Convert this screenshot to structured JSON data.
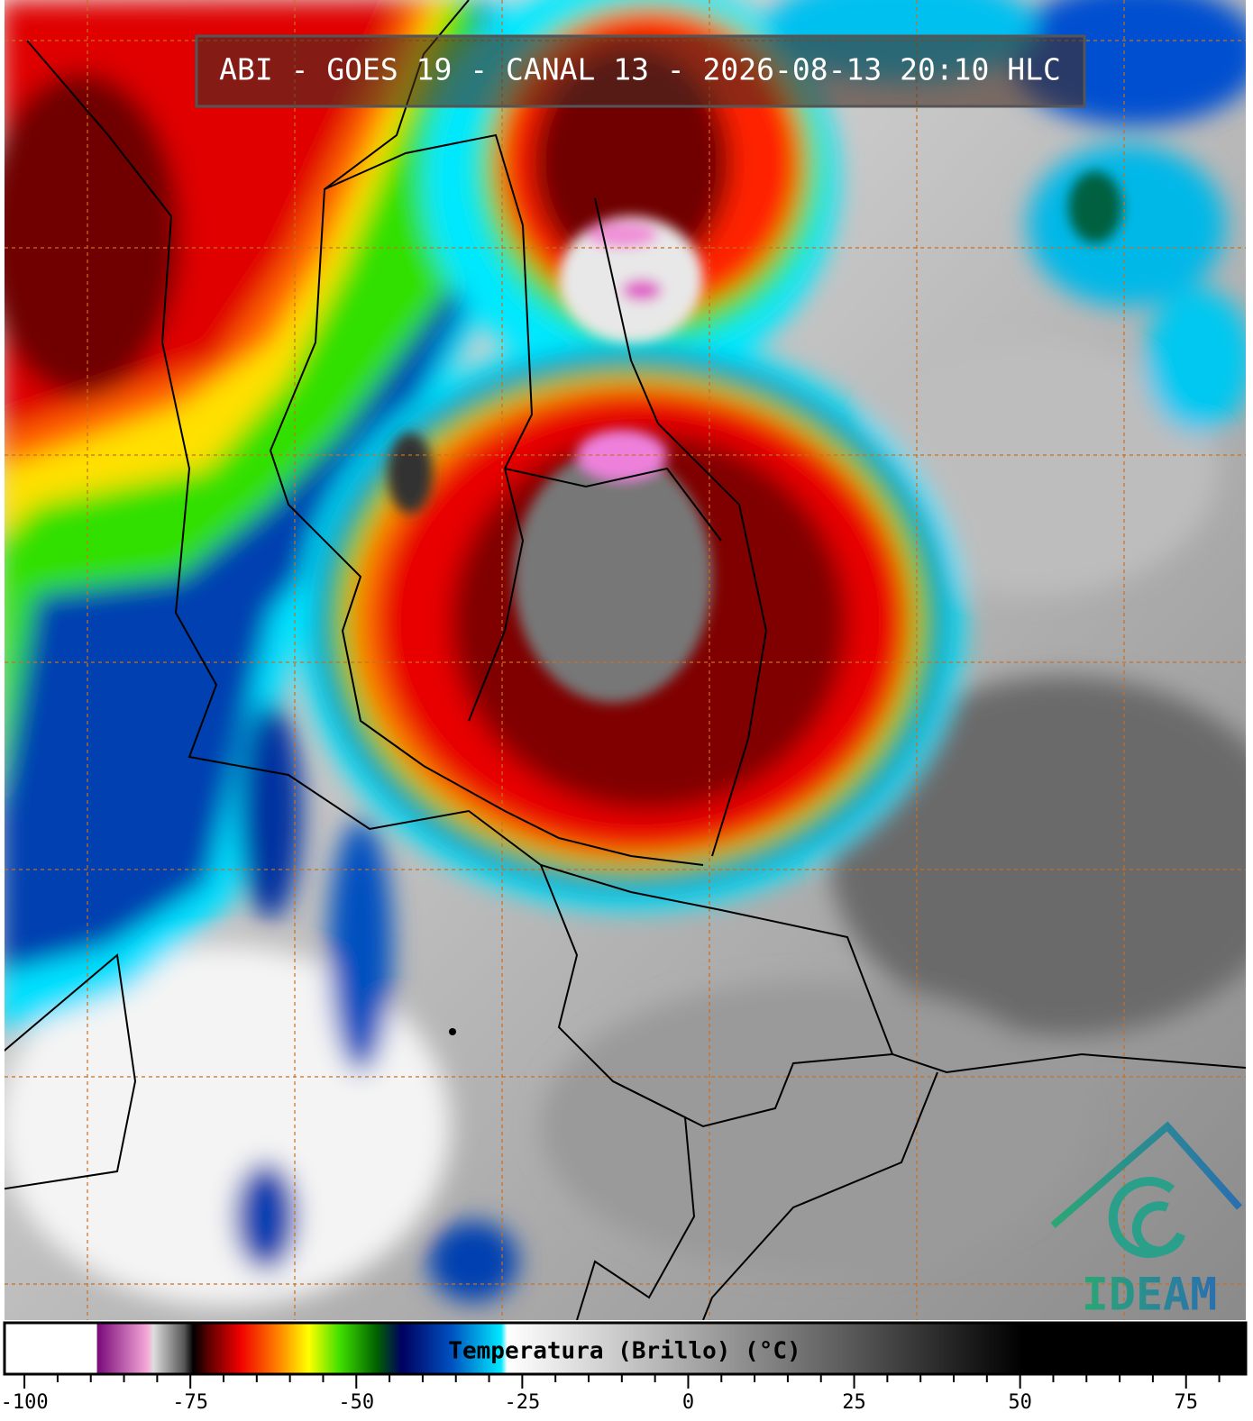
{
  "header": {
    "title": "ABI - GOES 19 - CANAL 13 - 2026-08-13 20:10 HLC"
  },
  "colorbar": {
    "label": "Temperatura (Brillo) (°C)",
    "xlim": [
      -103,
      84
    ],
    "xticks": [
      -100,
      -75,
      -50,
      -25,
      0,
      25,
      50,
      75
    ],
    "xminorticks": [
      -95,
      -90,
      -85,
      -80,
      -70,
      -65,
      -60,
      -55,
      -45,
      -40,
      -35,
      -30,
      -20,
      -15,
      -10,
      -5,
      5,
      10,
      15,
      20,
      30,
      35,
      40,
      45,
      55,
      60,
      65,
      70,
      80
    ]
  },
  "logo": {
    "text": "IDEAM"
  }
}
